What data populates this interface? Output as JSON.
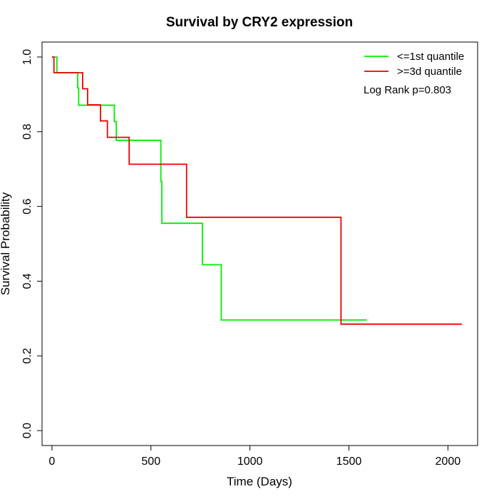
{
  "chart_data": {
    "type": "line",
    "title": "Survival by CRY2 expression",
    "xlabel": "Time (Days)",
    "ylabel": "Survival Probability",
    "xlim": [
      -50,
      2150
    ],
    "ylim": [
      -0.04,
      1.04
    ],
    "x_ticks": [
      0,
      500,
      1000,
      1500,
      2000
    ],
    "y_ticks": [
      0.0,
      0.2,
      0.4,
      0.6,
      0.8,
      1.0
    ],
    "x_tick_labels": [
      "0",
      "500",
      "1000",
      "1500",
      "2000"
    ],
    "y_tick_labels": [
      "0.0",
      "0.2",
      "0.4",
      "0.6",
      "0.8",
      "1.0"
    ],
    "grid": false,
    "legend_position": "top-right",
    "annotation": "Log Rank p=0.803",
    "series": [
      {
        "name": "<=1st quantile",
        "color": "#00ee00",
        "steps": [
          [
            0,
            1.0
          ],
          [
            25,
            0.958
          ],
          [
            130,
            0.917
          ],
          [
            135,
            0.871
          ],
          [
            315,
            0.827
          ],
          [
            325,
            0.777
          ],
          [
            550,
            0.667
          ],
          [
            555,
            0.555
          ],
          [
            760,
            0.444
          ],
          [
            855,
            0.296
          ],
          [
            1590,
            0.296
          ]
        ]
      },
      {
        "name": ">=3d quantile",
        "color": "#ee0000",
        "steps": [
          [
            0,
            1.0
          ],
          [
            10,
            0.958
          ],
          [
            155,
            0.915
          ],
          [
            180,
            0.872
          ],
          [
            245,
            0.829
          ],
          [
            280,
            0.785
          ],
          [
            390,
            0.713
          ],
          [
            680,
            0.571
          ],
          [
            1460,
            0.285
          ],
          [
            2070,
            0.285
          ]
        ]
      }
    ]
  }
}
